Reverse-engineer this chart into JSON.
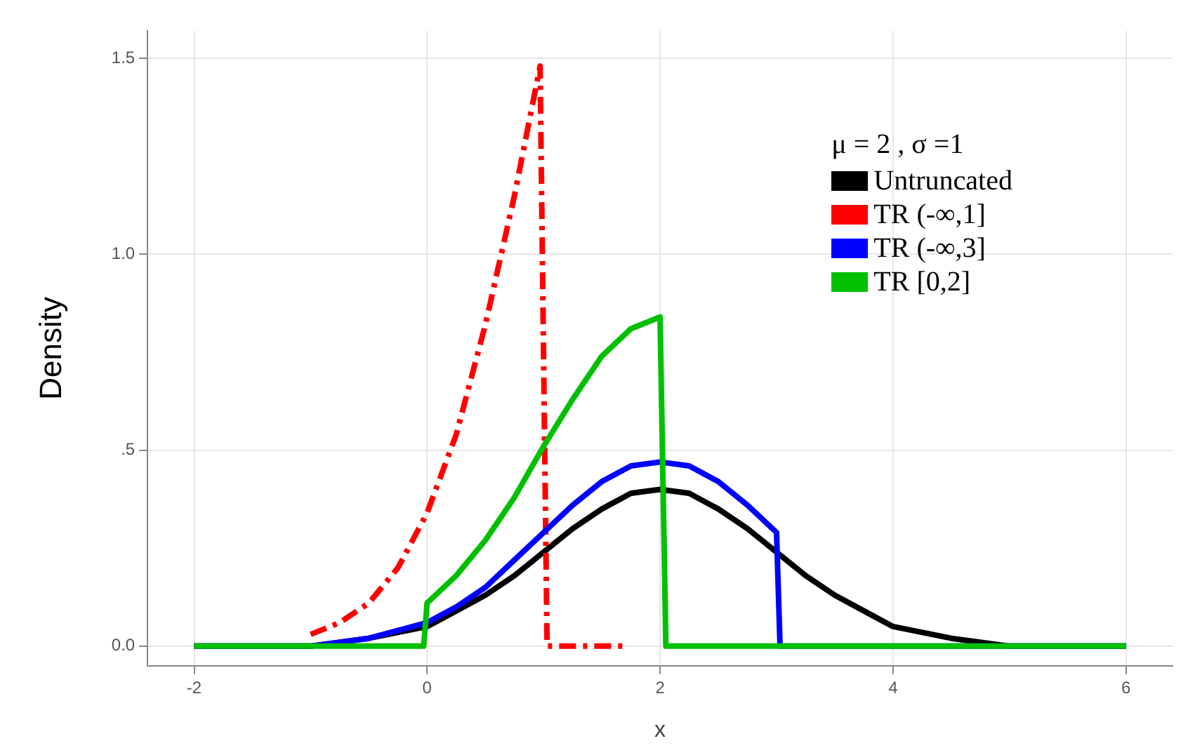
{
  "chart_data": {
    "type": "line",
    "xlabel": "x",
    "ylabel": "Density",
    "legend_title": "μ = 2 , σ =1",
    "legend": "top right",
    "grid": true,
    "marker": "none",
    "xlim": [
      -2.4,
      6.4
    ],
    "xticks": [
      -2,
      0,
      2,
      4,
      6
    ],
    "ylim": [
      -0.05,
      1.57
    ],
    "yticks": [
      {
        "value": 0,
        "label": "0.0"
      },
      {
        "value": 0.5,
        "label": ".5"
      },
      {
        "value": 1,
        "label": "1.0"
      },
      {
        "value": 1.5,
        "label": "1.5"
      }
    ],
    "series": [
      {
        "name": "Untruncated",
        "color": "#000000",
        "line_style": "solid",
        "x": [
          -2,
          -1,
          -0.5,
          0,
          0.25,
          0.5,
          0.75,
          1,
          1.25,
          1.5,
          1.75,
          2,
          2.25,
          2.5,
          2.75,
          3,
          3.25,
          3.5,
          3.75,
          4,
          4.5,
          5,
          6
        ],
        "values": [
          0,
          0,
          0.02,
          0.05,
          0.09,
          0.13,
          0.18,
          0.24,
          0.3,
          0.35,
          0.39,
          0.4,
          0.39,
          0.35,
          0.3,
          0.24,
          0.18,
          0.13,
          0.09,
          0.05,
          0.02,
          0,
          0
        ]
      },
      {
        "name": "TR (-∞,1]",
        "color": "#ff0000",
        "line_style": "dashed",
        "x": [
          -1,
          -0.75,
          -0.5,
          -0.25,
          0,
          0.25,
          0.5,
          0.75,
          0.97,
          1.03,
          1.7
        ],
        "values": [
          0.03,
          0.06,
          0.11,
          0.2,
          0.34,
          0.54,
          0.82,
          1.15,
          1.48,
          0,
          0
        ]
      },
      {
        "name": "TR (-∞,3]",
        "color": "#0000ff",
        "line_style": "solid",
        "x": [
          -2,
          -1,
          -0.5,
          0,
          0.25,
          0.5,
          0.75,
          1,
          1.25,
          1.5,
          1.75,
          2,
          2.25,
          2.5,
          2.75,
          3,
          3.03,
          6
        ],
        "values": [
          0,
          0,
          0.02,
          0.06,
          0.1,
          0.15,
          0.22,
          0.29,
          0.36,
          0.42,
          0.46,
          0.47,
          0.46,
          0.42,
          0.36,
          0.29,
          0,
          0
        ]
      },
      {
        "name": "TR [0,2]",
        "color": "#00c000",
        "line_style": "solid",
        "x": [
          -2,
          -0.03,
          0,
          0.25,
          0.5,
          0.75,
          1,
          1.25,
          1.5,
          1.75,
          2,
          2.05,
          6
        ],
        "values": [
          0,
          0,
          0.11,
          0.18,
          0.27,
          0.38,
          0.51,
          0.63,
          0.74,
          0.81,
          0.84,
          0,
          0
        ]
      }
    ]
  }
}
